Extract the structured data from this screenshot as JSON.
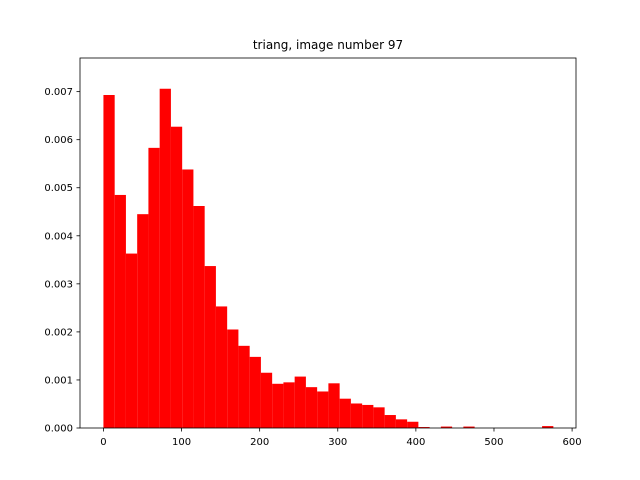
{
  "chart_data": {
    "type": "bar",
    "title": "triang, image number 97",
    "xlabel": "",
    "ylabel": "",
    "xlim": [
      -30,
      605
    ],
    "ylim": [
      0,
      0.0077
    ],
    "grid": false,
    "bar_color": "#ff0000",
    "x_ticks": [
      0,
      100,
      200,
      300,
      400,
      500,
      600
    ],
    "x_tick_labels": [
      "0",
      "100",
      "200",
      "300",
      "400",
      "500",
      "600"
    ],
    "y_ticks": [
      0,
      0.001,
      0.002,
      0.003,
      0.004,
      0.005,
      0.006,
      0.007
    ],
    "y_tick_labels": [
      "0.000",
      "0.001",
      "0.002",
      "0.003",
      "0.004",
      "0.005",
      "0.006",
      "0.007"
    ],
    "bin_width": 14.4,
    "bins": [
      {
        "x0": 0.0,
        "value": 0.00693
      },
      {
        "x0": 14.4,
        "value": 0.00485
      },
      {
        "x0": 28.8,
        "value": 0.00363
      },
      {
        "x0": 43.2,
        "value": 0.00445
      },
      {
        "x0": 57.6,
        "value": 0.00583
      },
      {
        "x0": 72.0,
        "value": 0.00706
      },
      {
        "x0": 86.4,
        "value": 0.00627
      },
      {
        "x0": 100.8,
        "value": 0.00538
      },
      {
        "x0": 115.2,
        "value": 0.00462
      },
      {
        "x0": 129.6,
        "value": 0.00337
      },
      {
        "x0": 144.0,
        "value": 0.00253
      },
      {
        "x0": 158.4,
        "value": 0.00205
      },
      {
        "x0": 172.8,
        "value": 0.00171
      },
      {
        "x0": 187.2,
        "value": 0.00148
      },
      {
        "x0": 201.6,
        "value": 0.00115
      },
      {
        "x0": 216.0,
        "value": 0.00092
      },
      {
        "x0": 230.4,
        "value": 0.00095
      },
      {
        "x0": 244.8,
        "value": 0.00107
      },
      {
        "x0": 259.2,
        "value": 0.00085
      },
      {
        "x0": 273.6,
        "value": 0.00076
      },
      {
        "x0": 288.0,
        "value": 0.00093
      },
      {
        "x0": 302.4,
        "value": 0.00061
      },
      {
        "x0": 316.8,
        "value": 0.00051
      },
      {
        "x0": 331.2,
        "value": 0.00048
      },
      {
        "x0": 345.6,
        "value": 0.00043
      },
      {
        "x0": 360.0,
        "value": 0.00027
      },
      {
        "x0": 374.4,
        "value": 0.00018
      },
      {
        "x0": 388.8,
        "value": 0.00013
      },
      {
        "x0": 403.2,
        "value": 2e-05
      },
      {
        "x0": 417.6,
        "value": 0.0
      },
      {
        "x0": 432.0,
        "value": 3e-05
      },
      {
        "x0": 446.4,
        "value": 0.0
      },
      {
        "x0": 460.8,
        "value": 3e-05
      },
      {
        "x0": 475.2,
        "value": 0.0
      },
      {
        "x0": 489.6,
        "value": 0.0
      },
      {
        "x0": 504.0,
        "value": 0.0
      },
      {
        "x0": 518.4,
        "value": 0.0
      },
      {
        "x0": 532.8,
        "value": 0.0
      },
      {
        "x0": 547.2,
        "value": 0.0
      },
      {
        "x0": 561.6,
        "value": 4e-05
      }
    ]
  }
}
